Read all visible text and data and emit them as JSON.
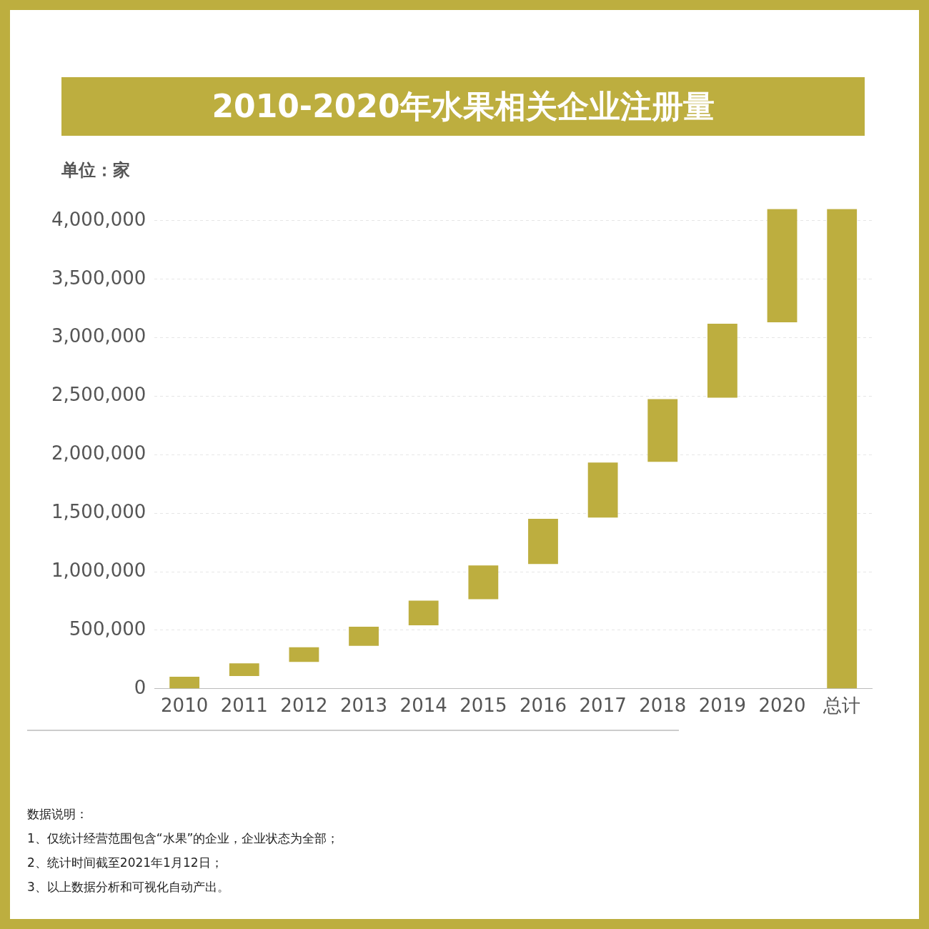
{
  "chart_data": {
    "type": "bar",
    "title": "2010-2020年水果相关企业注册量",
    "ylabel": "单位：家",
    "categories": [
      "2010",
      "2011",
      "2012",
      "2013",
      "2014",
      "2015",
      "2016",
      "2017",
      "2018",
      "2019",
      "2020",
      "总计"
    ],
    "base": [
      0,
      108000,
      229000,
      367000,
      542000,
      765000,
      1066000,
      1464000,
      1940000,
      2488000,
      3133000,
      0
    ],
    "values": [
      102000,
      109000,
      126000,
      163000,
      211000,
      289000,
      386000,
      470000,
      536000,
      632000,
      969000,
      4102000
    ],
    "color": "#bdae3f",
    "ylim": [
      0,
      4100000
    ],
    "yticks": [
      0,
      {
        "value": 500000,
        "label": "500,000"
      },
      {
        "value": 1000000,
        "label": "1,000,000"
      },
      {
        "value": 1500000,
        "label": "1,500,000"
      },
      {
        "value": 2000000,
        "label": "2,000,000"
      },
      {
        "value": 2500000,
        "label": "2,500,000"
      },
      {
        "value": 3000000,
        "label": "3,000,000"
      },
      {
        "value": 3500000,
        "label": "3,500,000"
      },
      {
        "value": 4000000,
        "label": "4,000,000"
      }
    ],
    "grid": "y",
    "annotations": [
      "数据说明：",
      "1、仅统计经营范围包含“水果”的企业，企业状态为全部；",
      "2、统计时间截至2021年1月12日；",
      "3、以上数据分析和可视化自动产出。"
    ]
  }
}
